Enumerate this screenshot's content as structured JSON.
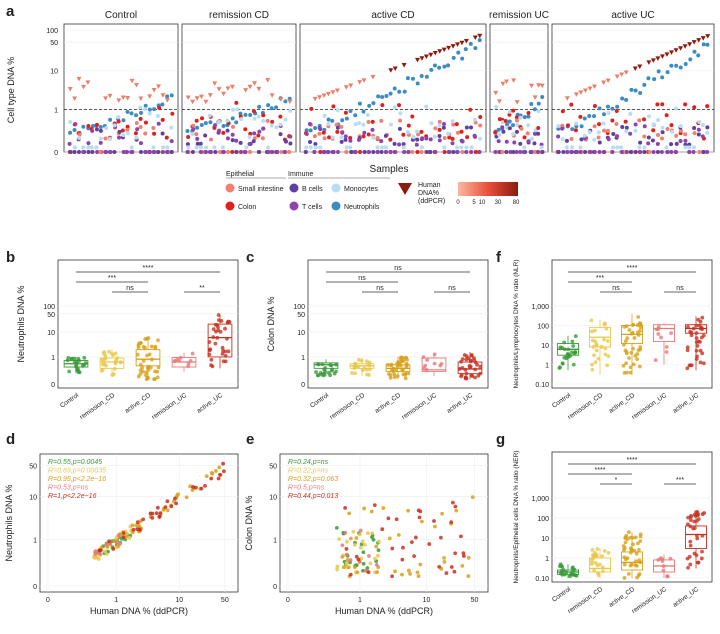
{
  "panel_letters": {
    "a": "a",
    "b": "b",
    "c": "c",
    "d": "d",
    "e": "e",
    "f": "f",
    "g": "g"
  },
  "colors": {
    "small_intestine": "#f08070",
    "colon": "#e0201c",
    "b_cells": "#6040a0",
    "t_cells": "#8e44ad",
    "monocytes": "#b8dcf4",
    "neutrophils": "#3c8cc4",
    "human_dna": "#8c1a10",
    "control": "#3a9a3a",
    "remission_CD": "#e8c84a",
    "active_CD": "#d8a018",
    "remission_UC": "#e87878",
    "active_UC": "#c83020"
  },
  "legend": {
    "epithelial": "Epithelial",
    "immune": "Immune",
    "small_intestine": "Small intestine",
    "colon": "Colon",
    "b_cells": "B cells",
    "t_cells": "T cells",
    "monocytes": "Monocytes",
    "neutrophils": "Neutrophils",
    "human_dna_1": "Human",
    "human_dna_2": "DNA%",
    "human_dna_3": "(ddPCR)",
    "gradient_ticks": [
      "0",
      "5",
      "10",
      "30",
      "80"
    ]
  },
  "chart_data": [
    {
      "id": "a",
      "type": "scatter",
      "facets": [
        "Control",
        "remission CD",
        "active CD",
        "remission UC",
        "active UC"
      ],
      "facet_n": [
        24,
        24,
        40,
        14,
        34
      ],
      "xlabel": "Samples",
      "ylabel": "Cell type DNA %",
      "y_ticks": [
        "0",
        "1",
        "10",
        "50",
        "100"
      ],
      "series": [
        "Small intestine",
        "Colon",
        "B cells",
        "T cells",
        "Monocytes",
        "Neutrophils",
        "Human DNA% (ddPCR)"
      ]
    },
    {
      "id": "b",
      "type": "box",
      "ylabel": "Neutrophils DNA %",
      "categories": [
        "Control",
        "remission_CD",
        "active_CD",
        "remission_UC",
        "active_UC"
      ],
      "y_ticks": [
        "0",
        "1",
        "10",
        "50",
        "100"
      ],
      "medians": [
        0.5,
        0.6,
        0.8,
        0.6,
        6
      ],
      "q1": [
        0.35,
        0.3,
        0.4,
        0.35,
        1
      ],
      "q3": [
        0.7,
        0.9,
        2,
        0.95,
        20
      ],
      "whisker_low": [
        0.15,
        0.1,
        0.05,
        0.2,
        0.3
      ],
      "whisker_high": [
        1,
        2,
        6,
        1.5,
        45
      ],
      "n": [
        22,
        24,
        40,
        9,
        34
      ],
      "comparisons": [
        {
          "from": 0,
          "to": 2,
          "label": "***"
        },
        {
          "from": 0,
          "to": 4,
          "label": "****"
        },
        {
          "from": 1,
          "to": 2,
          "label": "ns"
        },
        {
          "from": 3,
          "to": 4,
          "label": "**"
        }
      ]
    },
    {
      "id": "c",
      "type": "box",
      "ylabel": "Colon DNA %",
      "categories": [
        "Control",
        "remission_CD",
        "active_CD",
        "remission_UC",
        "active_UC"
      ],
      "y_ticks": [
        "0",
        "1",
        "10",
        "50",
        "100"
      ],
      "medians": [
        0.45,
        0.4,
        0.3,
        0.25,
        0.28
      ],
      "q1": [
        0.3,
        0.3,
        0.2,
        0.2,
        0.15
      ],
      "q3": [
        0.55,
        0.5,
        0.45,
        0.9,
        0.6
      ],
      "whisker_low": [
        0.1,
        0.1,
        0.05,
        0.1,
        0.05
      ],
      "whisker_high": [
        0.8,
        0.9,
        1,
        1.4,
        1.6
      ],
      "n": [
        22,
        20,
        40,
        9,
        34
      ],
      "comparisons": [
        {
          "from": 0,
          "to": 2,
          "label": "ns"
        },
        {
          "from": 0,
          "to": 4,
          "label": "ns"
        },
        {
          "from": 1,
          "to": 2,
          "label": "ns"
        },
        {
          "from": 3,
          "to": 4,
          "label": "ns"
        }
      ]
    },
    {
      "id": "f",
      "type": "box",
      "ylabel": "Neutrophils/Lymphocytes DNA % ratio (NLR)",
      "categories": [
        "Control",
        "remission_CD",
        "active_CD",
        "remission_UC",
        "active_UC"
      ],
      "y_ticks": [
        "0.10",
        "1",
        "10",
        "100",
        "1,000"
      ],
      "medians": [
        6,
        25,
        35,
        70,
        70
      ],
      "q1": [
        3,
        8,
        12,
        15,
        40
      ],
      "q3": [
        12,
        80,
        100,
        110,
        110
      ],
      "whisker_low": [
        0.5,
        0.3,
        0.3,
        1,
        0.5
      ],
      "whisker_high": [
        30,
        200,
        400,
        130,
        300
      ],
      "n": [
        24,
        24,
        40,
        9,
        34
      ],
      "comparisons": [
        {
          "from": 0,
          "to": 2,
          "label": "***"
        },
        {
          "from": 0,
          "to": 4,
          "label": "****"
        },
        {
          "from": 1,
          "to": 2,
          "label": "ns"
        },
        {
          "from": 3,
          "to": 4,
          "label": "ns"
        }
      ]
    },
    {
      "id": "g",
      "type": "box",
      "ylabel": "Neutrophils/Epithelial cells DNA % ratio (NER)",
      "categories": [
        "Control",
        "remission_CD",
        "active_CD",
        "remission_UC",
        "active_UC"
      ],
      "y_ticks": [
        "0.10",
        "1",
        "10",
        "100",
        "1,000"
      ],
      "medians": [
        0.2,
        0.3,
        0.6,
        0.4,
        15
      ],
      "q1": [
        0.15,
        0.2,
        0.25,
        0.2,
        3
      ],
      "q3": [
        0.25,
        1,
        2,
        0.8,
        40
      ],
      "whisker_low": [
        0.1,
        0.1,
        0.1,
        0.1,
        0.3
      ],
      "whisker_high": [
        0.5,
        3,
        20,
        1.5,
        200
      ],
      "n": [
        22,
        24,
        40,
        9,
        34
      ],
      "comparisons": [
        {
          "from": 0,
          "to": 2,
          "label": "****"
        },
        {
          "from": 0,
          "to": 4,
          "label": "****"
        },
        {
          "from": 1,
          "to": 2,
          "label": "*"
        },
        {
          "from": 3,
          "to": 4,
          "label": "***"
        }
      ]
    },
    {
      "id": "d",
      "type": "scatter",
      "xlabel": "Human DNA % (ddPCR)",
      "ylabel": "Neutrophils DNA %",
      "x_ticks": [
        "0",
        "1",
        "10",
        "50"
      ],
      "y_ticks": [
        "0",
        "1",
        "10",
        "50"
      ],
      "annotations": [
        {
          "R": "R=0.55,",
          "p": "p=0.0045",
          "group": "Control"
        },
        {
          "R": "R=0.69,",
          "p": "p=0.00035",
          "group": "remission_CD"
        },
        {
          "R": "R=0.95,",
          "p": "p<2.2e−16",
          "group": "active_CD"
        },
        {
          "R": "R=0.53,",
          "p": "p=ns",
          "group": "remission_UC"
        },
        {
          "R": "R=1,",
          "p": "p<2.2e−16",
          "group": "active_UC"
        }
      ]
    },
    {
      "id": "e",
      "type": "scatter",
      "xlabel": "Human DNA % (ddPCR)",
      "ylabel": "Colon DNA %",
      "x_ticks": [
        "0",
        "1",
        "10",
        "50"
      ],
      "y_ticks": [
        "0",
        "1",
        "10",
        "50"
      ],
      "annotations": [
        {
          "R": "R=0.24,",
          "p": "p=ns",
          "group": "Control"
        },
        {
          "R": "R=0.22,",
          "p": "p=ns",
          "group": "remission_CD"
        },
        {
          "R": "R=0.32,",
          "p": "p=0.063",
          "group": "active_CD"
        },
        {
          "R": "R=0.5,",
          "p": "p=ns",
          "group": "remission_UC"
        },
        {
          "R": "R=0.44,",
          "p": "p=0.013",
          "group": "active_UC"
        }
      ]
    }
  ]
}
